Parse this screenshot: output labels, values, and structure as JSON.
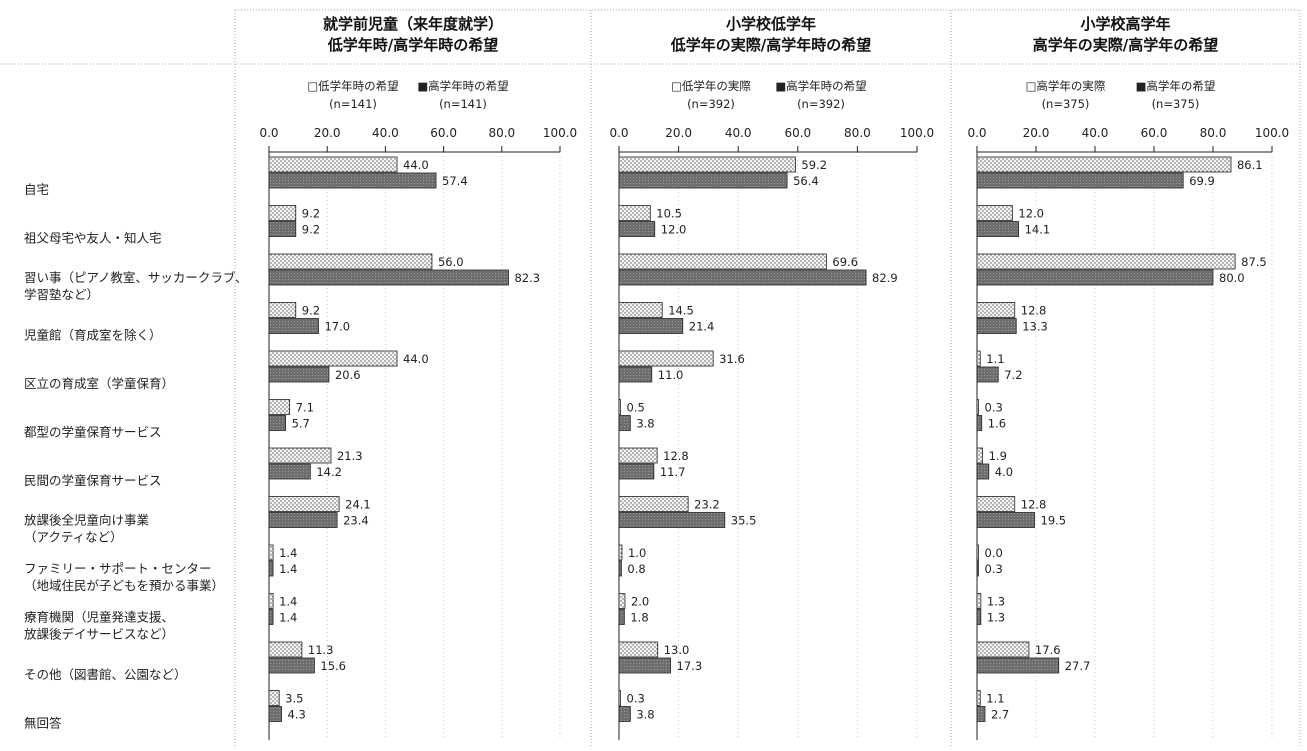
{
  "categories": [
    [
      "自宅"
    ],
    [
      "祖父母宅や友人・知人宅"
    ],
    [
      "習い事（ピアノ教室、サッカークラブ、",
      "学習塾など）"
    ],
    [
      "児童館（育成室を除く）"
    ],
    [
      "区立の育成室（学童保育）"
    ],
    [
      "都型の学童保育サービス"
    ],
    [
      "民間の学童保育サービス"
    ],
    [
      "放課後全児童向け事業",
      "（アクティなど）"
    ],
    [
      "ファミリー・サポート・センター",
      "（地域住民が子どもを預かる事業）"
    ],
    [
      "療育機関（児童発達支援、",
      "放課後デイサービスなど）"
    ],
    [
      "その他（図書館、公園など）"
    ],
    [
      "無回答"
    ]
  ],
  "tick_labels": [
    "0.0",
    "20.0",
    "40.0",
    "60.0",
    "80.0",
    "100.0"
  ],
  "colors": {
    "light": "#f2f2f2",
    "dark": "#6e6e6e",
    "stroke": "#222222"
  },
  "chart_data": [
    {
      "type": "bar",
      "orientation": "horizontal",
      "title": [
        "就学前児童（来年度就学）",
        "低学年時/高学年時の希望"
      ],
      "xlim": [
        0,
        100
      ],
      "series": [
        {
          "name": "□低学年時の希望",
          "n": "(n=141)",
          "values": [
            44.0,
            9.2,
            56.0,
            9.2,
            44.0,
            7.1,
            21.3,
            24.1,
            1.4,
            1.4,
            11.3,
            3.5
          ]
        },
        {
          "name": "■高学年時の希望",
          "n": "(n=141)",
          "values": [
            57.4,
            9.2,
            82.3,
            17.0,
            20.6,
            5.7,
            14.2,
            23.4,
            1.4,
            1.4,
            15.6,
            4.3
          ]
        }
      ]
    },
    {
      "type": "bar",
      "orientation": "horizontal",
      "title": [
        "小学校低学年",
        "低学年の実際/高学年時の希望"
      ],
      "xlim": [
        0,
        100
      ],
      "series": [
        {
          "name": "□低学年の実際",
          "n": "(n=392)",
          "values": [
            59.2,
            10.5,
            69.6,
            14.5,
            31.6,
            0.5,
            12.8,
            23.2,
            1.0,
            2.0,
            13.0,
            0.3
          ]
        },
        {
          "name": "■高学年時の希望",
          "n": "(n=392)",
          "values": [
            56.4,
            12.0,
            82.9,
            21.4,
            11.0,
            3.8,
            11.7,
            35.5,
            0.8,
            1.8,
            17.3,
            3.8
          ]
        }
      ]
    },
    {
      "type": "bar",
      "orientation": "horizontal",
      "title": [
        "小学校高学年",
        "高学年の実際/高学年の希望"
      ],
      "xlim": [
        0,
        100
      ],
      "series": [
        {
          "name": "□高学年の実際",
          "n": "(n=375)",
          "values": [
            86.1,
            12.0,
            87.5,
            12.8,
            1.1,
            0.3,
            1.9,
            12.8,
            0.0,
            1.3,
            17.6,
            1.1
          ]
        },
        {
          "name": "■高学年の希望",
          "n": "(n=375)",
          "values": [
            69.9,
            14.1,
            80.0,
            13.3,
            7.2,
            1.6,
            4.0,
            19.5,
            0.3,
            1.3,
            27.7,
            2.7
          ]
        }
      ]
    }
  ]
}
